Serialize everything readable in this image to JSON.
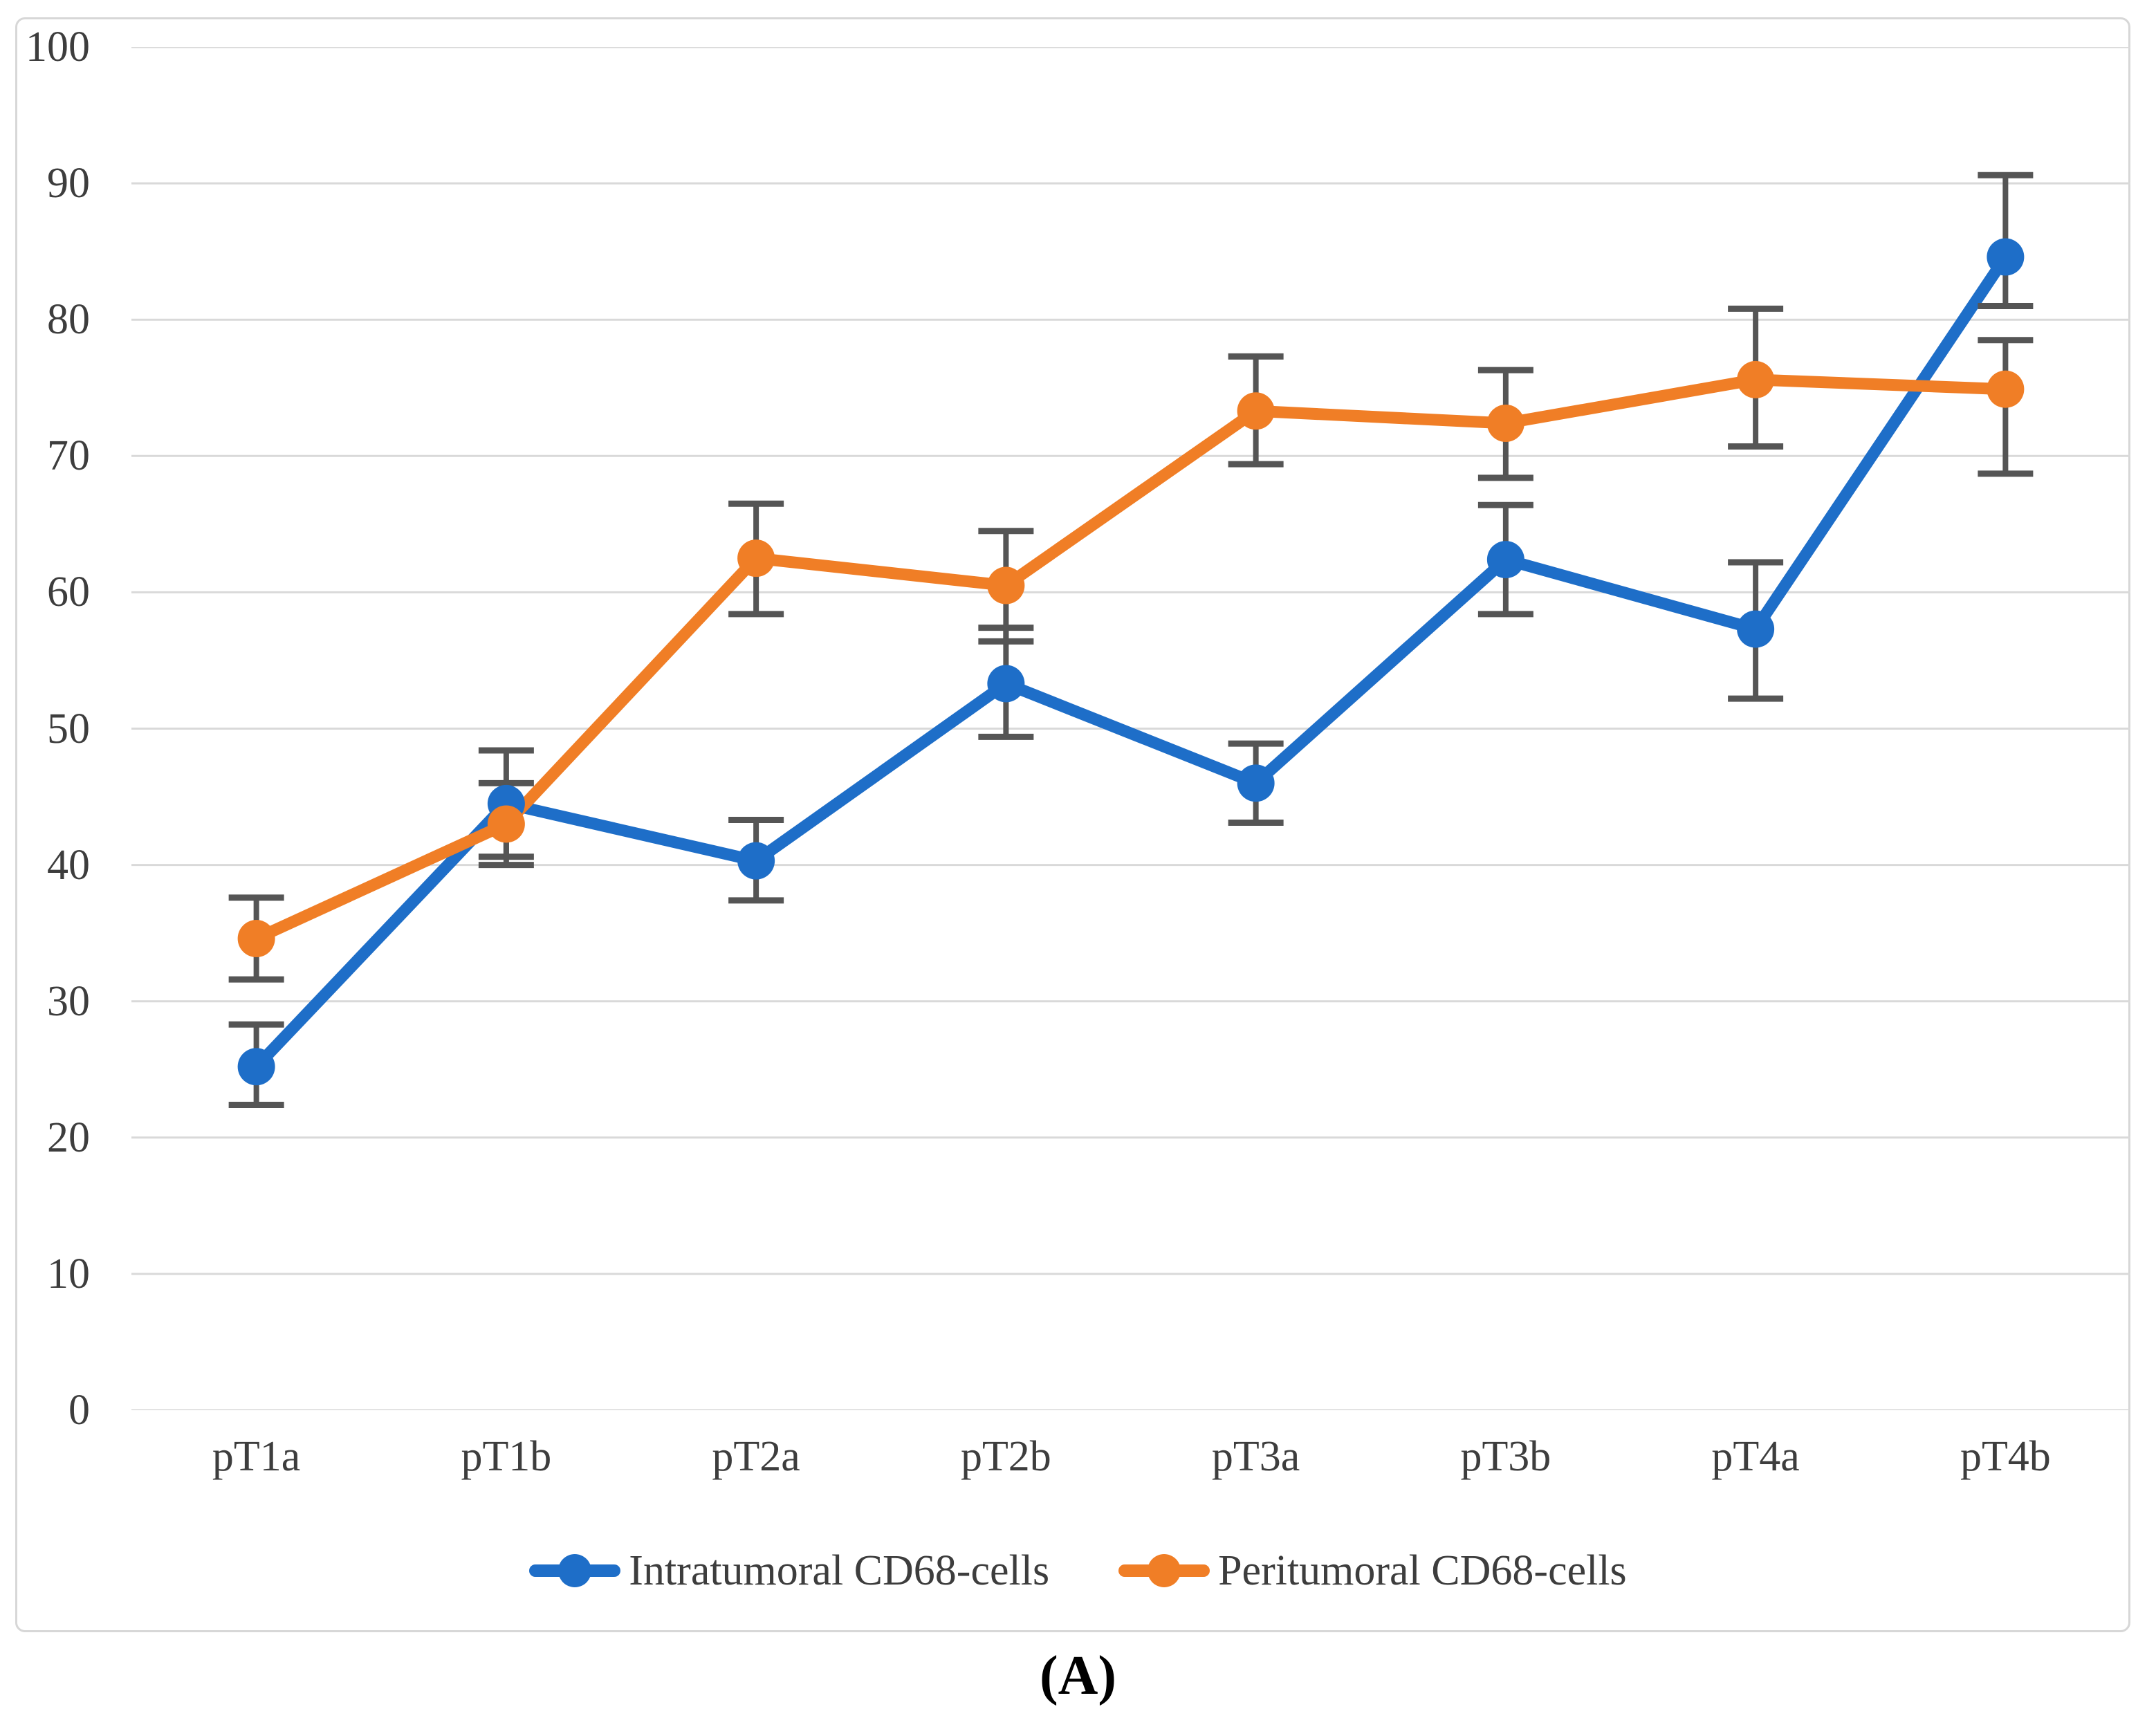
{
  "figure": {
    "caption": "(A)"
  },
  "chart_data": {
    "type": "line",
    "title": "",
    "xlabel": "",
    "ylabel": "",
    "categories": [
      "pT1a",
      "pT1b",
      "pT2a",
      "pT2b",
      "pT3a",
      "pT3b",
      "pT4a",
      "pT4b"
    ],
    "series": [
      {
        "name": "Intratumoral CD68-cells",
        "color": "#1E6EC8",
        "marker": "circle",
        "values": [
          25.2,
          44.5,
          40.3,
          53.3,
          46.0,
          62.4,
          57.3,
          84.6
        ],
        "error_top": [
          28.3,
          48.4,
          43.3,
          57.4,
          48.9,
          66.4,
          62.2,
          90.6
        ],
        "error_bottom": [
          22.4,
          40.6,
          37.4,
          49.4,
          43.1,
          58.4,
          52.2,
          81.0
        ]
      },
      {
        "name": "Peritumoral CD68-cells",
        "color": "#F07E26",
        "marker": "circle",
        "values": [
          34.6,
          43.0,
          62.5,
          60.5,
          73.3,
          72.4,
          75.6,
          74.9
        ],
        "error_top": [
          37.6,
          46.0,
          66.5,
          64.5,
          77.3,
          76.3,
          80.8,
          78.5
        ],
        "error_bottom": [
          31.6,
          40.0,
          58.4,
          56.4,
          69.4,
          68.4,
          70.7,
          68.7
        ]
      }
    ],
    "ylim": [
      0,
      100
    ],
    "yticks": [
      0,
      10,
      20,
      30,
      40,
      50,
      60,
      70,
      80,
      90,
      100
    ],
    "grid": "horizontal",
    "gridline_color": "#d9d9d9",
    "error_bar_color": "#555555",
    "legend_position": "bottom"
  }
}
